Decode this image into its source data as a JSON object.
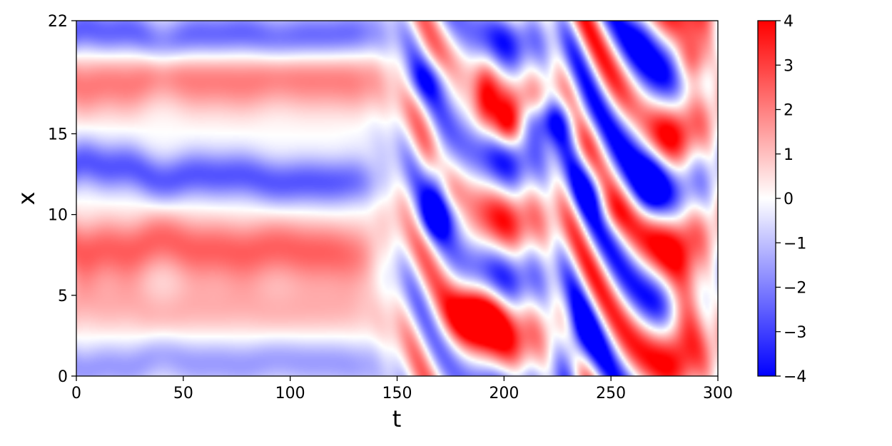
{
  "chart_data": {
    "type": "heatmap",
    "title": "",
    "xlabel": "t",
    "ylabel": "x",
    "xlim": [
      0,
      300
    ],
    "ylim": [
      0,
      22
    ],
    "x_ticks": [
      0,
      50,
      100,
      150,
      200,
      250,
      300
    ],
    "y_ticks": [
      0,
      5,
      10,
      15,
      22
    ],
    "colormap": "bwr",
    "colors": {
      "low": "#0000ff",
      "mid": "#ffffff",
      "high": "#ff0000"
    },
    "colorbar": {
      "range": [
        -4,
        4
      ],
      "ticks": [
        4,
        3,
        2,
        1,
        0,
        -1,
        -2,
        -3,
        -4
      ],
      "tick_labels": [
        "4",
        "3",
        "2",
        "1",
        "0",
        "−1",
        "−2",
        "−3",
        "−4"
      ]
    },
    "grid": false,
    "bands": [
      {
        "name": "top-trough",
        "start_y": 21.0,
        "end_y": 21.0,
        "value": -2.6,
        "t_end": 140
      },
      {
        "name": "upper-crest",
        "start_y": 18.4,
        "end_y": 18.4,
        "value": 2.1,
        "t_end": 140
      },
      {
        "name": "mid-trough",
        "start_y": 12.8,
        "end_y": 11.8,
        "value": -2.7,
        "t_end": 140
      },
      {
        "name": "lower-crest",
        "start_y": 8.2,
        "end_y": 7.6,
        "value": 2.5,
        "t_end": 140
      },
      {
        "name": "broad-low-crest",
        "start_y": 4.2,
        "end_y": 4.2,
        "value": 1.2,
        "t_end": 135
      },
      {
        "name": "bottom-trough",
        "start_y": 0.9,
        "end_y": 0.9,
        "value": -1.6,
        "t_end": 140
      }
    ],
    "turbulent_region": {
      "t_start": 145,
      "t_end": 300
    }
  }
}
